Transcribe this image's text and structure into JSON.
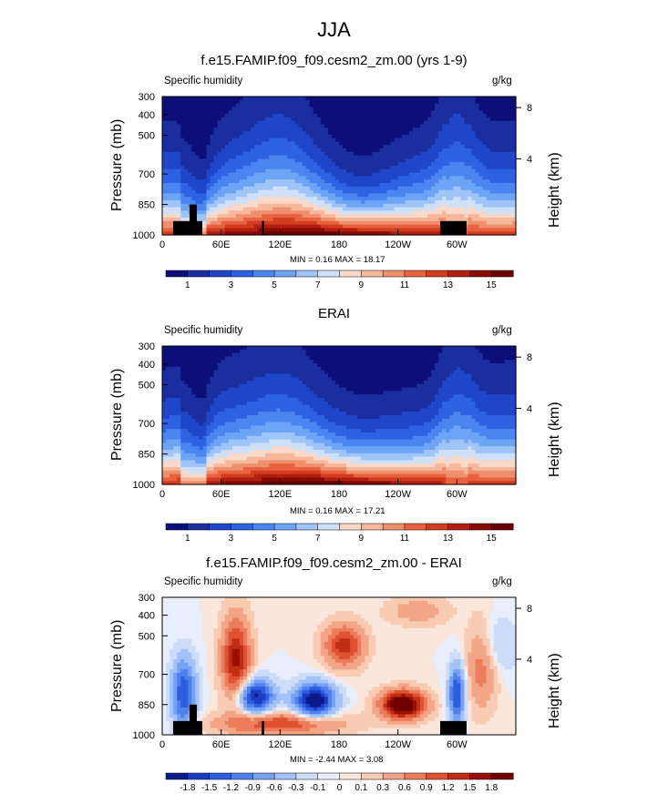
{
  "title": "JJA",
  "panels": [
    {
      "title": "f.e15.FAMIP.f09_f09.cesm2_zm.00 (yrs 1-9)",
      "left_label": "Specific humidity",
      "right_label": "g/kg",
      "ylabel": "Pressure (mb)",
      "ylabel_right": "Height (km)",
      "stats": "MIN =  0.16  MAX = 18.17",
      "colorbar_labels": [
        "1",
        "3",
        "5",
        "7",
        "9",
        "11",
        "13",
        "15"
      ]
    },
    {
      "title": "ERAI",
      "left_label": "Specific humidity",
      "right_label": "g/kg",
      "ylabel": "Pressure (mb)",
      "ylabel_right": "Height (km)",
      "stats": "MIN =  0.16  MAX = 17.21",
      "colorbar_labels": [
        "1",
        "3",
        "5",
        "7",
        "9",
        "11",
        "13",
        "15"
      ]
    },
    {
      "title": "f.e15.FAMIP.f09_f09.cesm2_zm.00 - ERAI",
      "left_label": "Specific humidity",
      "right_label": "g/kg",
      "ylabel": "Pressure (mb)",
      "ylabel_right": "Height (km)",
      "stats": "MIN = -2.44  MAX =  3.08",
      "colorbar_labels": [
        "-1.8",
        "-1.5",
        "-1.2",
        "-0.9",
        "-0.6",
        "-0.3",
        "-0.1",
        "0",
        "0.1",
        "0.3",
        "0.6",
        "0.9",
        "1.2",
        "1.5",
        "1.8"
      ]
    }
  ],
  "axes": {
    "y_ticks": [
      "300",
      "400",
      "500",
      "700",
      "850",
      "1000"
    ],
    "x_ticks": [
      "0",
      "60E",
      "120E",
      "180",
      "120W",
      "60W"
    ],
    "right_ticks": [
      "8",
      "4"
    ]
  },
  "colors": {
    "humidity_palette": [
      "#0c0f7a",
      "#1a2ea0",
      "#1f46c9",
      "#2d62e2",
      "#4a85f0",
      "#6ea4f5",
      "#9fc4f8",
      "#cfe0f9",
      "#fbd9c8",
      "#f6b79b",
      "#f08f6d",
      "#e8623f",
      "#d23d20",
      "#b21f10",
      "#8a0a05",
      "#6a0000"
    ],
    "diff_palette": [
      "#0b1c8a",
      "#1c3cc2",
      "#2f5de0",
      "#4f80ee",
      "#77a2f4",
      "#a3c2f7",
      "#cdddf8",
      "#e8eefb",
      "#fbe6dc",
      "#f8cbb3",
      "#f3a687",
      "#ec7d5c",
      "#de5232",
      "#c02c14",
      "#980f04",
      "#6e0000"
    ]
  },
  "chart_data": [
    {
      "type": "heatmap",
      "title": "f.e15.FAMIP.f09_f09.cesm2_zm.00 (yrs 1-9)",
      "xlabel": "",
      "ylabel": "Pressure (mb)",
      "y_right_label": "Height (km)",
      "variable": "Specific humidity",
      "units": "g/kg",
      "x_range": [
        0,
        360
      ],
      "y_range": [
        1000,
        300
      ],
      "y_scale": "log",
      "min": 0.16,
      "max": 18.17,
      "contour_levels": [
        1,
        2,
        3,
        4,
        5,
        6,
        7,
        8,
        9,
        10,
        11,
        12,
        13,
        14,
        15
      ],
      "colorbar_labels": [
        1,
        3,
        5,
        7,
        9,
        11,
        13,
        15
      ]
    },
    {
      "type": "heatmap",
      "title": "ERAI",
      "xlabel": "",
      "ylabel": "Pressure (mb)",
      "y_right_label": "Height (km)",
      "variable": "Specific humidity",
      "units": "g/kg",
      "x_range": [
        0,
        360
      ],
      "y_range": [
        1000,
        300
      ],
      "y_scale": "log",
      "min": 0.16,
      "max": 17.21,
      "contour_levels": [
        1,
        2,
        3,
        4,
        5,
        6,
        7,
        8,
        9,
        10,
        11,
        12,
        13,
        14,
        15
      ],
      "colorbar_labels": [
        1,
        3,
        5,
        7,
        9,
        11,
        13,
        15
      ]
    },
    {
      "type": "heatmap",
      "title": "f.e15.FAMIP.f09_f09.cesm2_zm.00 - ERAI",
      "xlabel": "",
      "ylabel": "Pressure (mb)",
      "y_right_label": "Height (km)",
      "variable": "Specific humidity",
      "units": "g/kg",
      "x_range": [
        0,
        360
      ],
      "y_range": [
        1000,
        300
      ],
      "y_scale": "log",
      "min": -2.44,
      "max": 3.08,
      "contour_levels": [
        -1.8,
        -1.5,
        -1.2,
        -0.9,
        -0.6,
        -0.3,
        -0.1,
        0,
        0.1,
        0.3,
        0.6,
        0.9,
        1.2,
        1.5,
        1.8
      ],
      "colorbar_labels": [
        -1.8,
        -1.5,
        -1.2,
        -0.9,
        -0.6,
        -0.3,
        -0.1,
        0,
        0.1,
        0.3,
        0.6,
        0.9,
        1.2,
        1.5,
        1.8
      ]
    }
  ]
}
